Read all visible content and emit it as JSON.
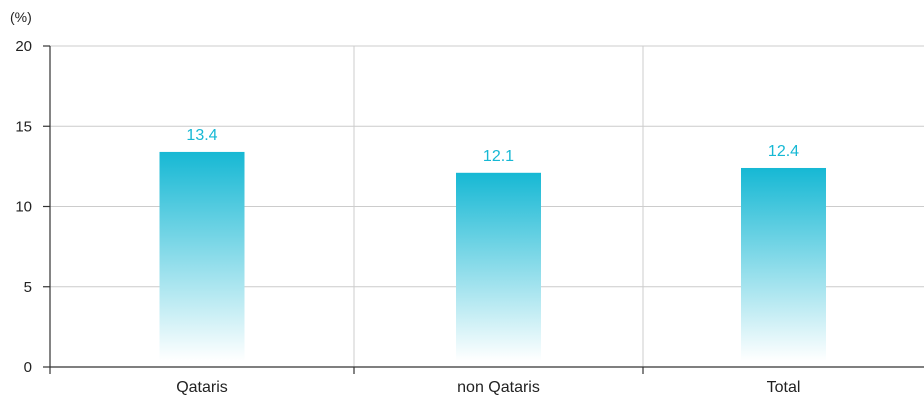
{
  "chart_data": {
    "type": "bar",
    "unit_label": "(%)",
    "categories": [
      "Qataris",
      "non Qataris",
      "Total"
    ],
    "values": [
      13.4,
      12.1,
      12.4
    ],
    "value_labels": [
      "13.4",
      "12.1",
      "12.4"
    ],
    "ylim": [
      0,
      20
    ],
    "yticks": [
      0,
      5,
      10,
      15,
      20
    ],
    "ytick_labels": [
      "0",
      "5",
      "10",
      "15",
      "20"
    ],
    "grid": true,
    "colors": {
      "bar_top": "#16b8d4",
      "bar_bottom": "#ffffff",
      "value_label": "#16b8d4",
      "grid": "#cccccc",
      "axis": "#333333"
    }
  }
}
